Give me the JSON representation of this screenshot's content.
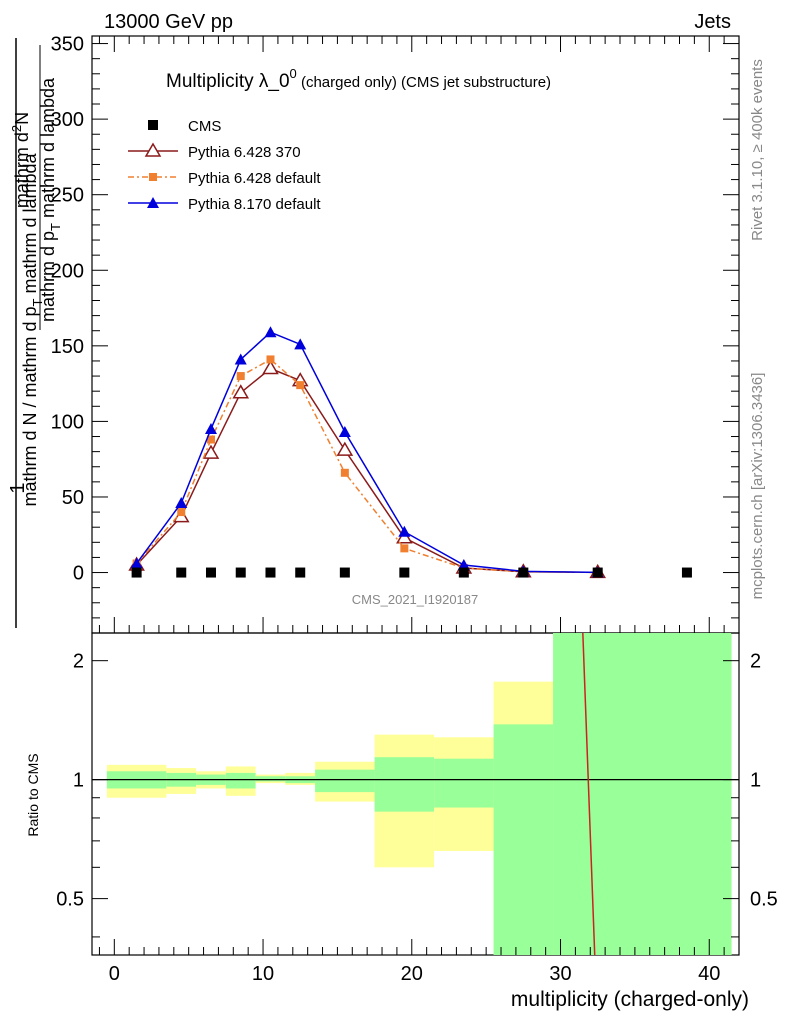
{
  "header": {
    "energy": "13000 GeV pp",
    "process": "Jets"
  },
  "side": {
    "rivet": "Rivet 3.1.10, ≥ 400k events",
    "mcplots": "mcplots.cern.ch [arXiv:1306.3436]"
  },
  "title": {
    "main": "Multiplicity λ_0",
    "sup": "0",
    "tail": " (charged only) (CMS jet substructure)"
  },
  "ylabel": {
    "num": "1",
    "den": "mathrm d N / mathrm d p",
    "den_sub": "T",
    "den2": " mathrm d lambda",
    "num2": "mathrm d",
    "num2_sup": "2",
    "num2b": "N",
    "num3": "mathrm d p",
    "num3_sub": "T",
    "num3b": " mathrm d lambda",
    "ratio": "Ratio to CMS"
  },
  "analysis_id": "CMS_2021_I1920187",
  "chart_data": [
    {
      "type": "scatter",
      "name": "main",
      "xlabel": "multiplicity (charged-only)",
      "xlim": [
        -1.5,
        42
      ],
      "ylim": [
        -40,
        355
      ],
      "yticks": [
        0,
        50,
        100,
        150,
        200,
        250,
        300,
        350
      ],
      "xticks": [
        0,
        10,
        20,
        30,
        40
      ],
      "series": [
        {
          "name": "CMS",
          "color": "#000000",
          "marker": "square",
          "line": "none",
          "x": [
            1.5,
            4.5,
            6.5,
            8.5,
            10.5,
            12.5,
            15.5,
            19.5,
            23.5,
            27.5,
            32.5,
            38.5
          ],
          "y": [
            0,
            0,
            0,
            0,
            0,
            0,
            0,
            0,
            0,
            0,
            0,
            0
          ]
        },
        {
          "name": "Pythia 6.428 370",
          "color": "#8b1a1a",
          "marker": "open-triangle",
          "line": "solid",
          "x": [
            1.5,
            4.5,
            6.5,
            8.5,
            10.5,
            12.5,
            15.5,
            19.5,
            23.5,
            27.5,
            32.5
          ],
          "y": [
            5,
            37,
            79,
            119,
            135,
            127,
            81,
            23,
            3,
            0.5,
            0.1
          ]
        },
        {
          "name": "Pythia 6.428 default",
          "color": "#f08030",
          "marker": "square-small",
          "line": "dashdot",
          "x": [
            1.5,
            4.5,
            6.5,
            8.5,
            10.5,
            12.5,
            15.5,
            19.5,
            23.5,
            27.5,
            32.5
          ],
          "y": [
            6,
            40,
            88,
            130,
            141,
            124,
            66,
            16,
            3,
            0.5,
            0.1
          ]
        },
        {
          "name": "Pythia 8.170 default",
          "color": "#0000dd",
          "marker": "filled-triangle",
          "line": "solid",
          "x": [
            1.5,
            4.5,
            6.5,
            8.5,
            10.5,
            12.5,
            15.5,
            19.5,
            23.5,
            27.5,
            32.5
          ],
          "y": [
            6,
            46,
            95,
            141,
            159,
            151,
            93,
            27,
            5,
            0.8,
            0.1
          ]
        }
      ]
    },
    {
      "type": "area",
      "name": "ratio",
      "ylabel": "Ratio to CMS",
      "ylim": [
        0.36,
        2.35
      ],
      "yticks": [
        0.5,
        1,
        2
      ],
      "bands": {
        "edges": [
          -0.5,
          3.5,
          5.5,
          7.5,
          9.5,
          11.5,
          13.5,
          17.5,
          21.5,
          25.5,
          29.5,
          41.5
        ],
        "outer_color": "#ffff99",
        "inner_color": "#99ff99",
        "outer_lo": [
          0.9,
          0.92,
          0.95,
          0.91,
          0.98,
          0.97,
          0.88,
          0.6,
          0.66,
          0.36,
          0.36
        ],
        "outer_hi": [
          1.09,
          1.07,
          1.05,
          1.08,
          1.03,
          1.04,
          1.11,
          1.3,
          1.28,
          1.77,
          2.35
        ],
        "inner_lo": [
          0.95,
          0.96,
          0.97,
          0.95,
          0.99,
          0.98,
          0.93,
          0.83,
          0.85,
          0.36,
          0.36
        ],
        "inner_hi": [
          1.05,
          1.04,
          1.03,
          1.04,
          1.02,
          1.02,
          1.06,
          1.14,
          1.13,
          1.38,
          2.35
        ]
      },
      "reference": 1,
      "red_line": {
        "x": [
          31.5,
          32.3
        ],
        "y": [
          2.35,
          0.36
        ],
        "color": "#cc2222"
      }
    }
  ]
}
